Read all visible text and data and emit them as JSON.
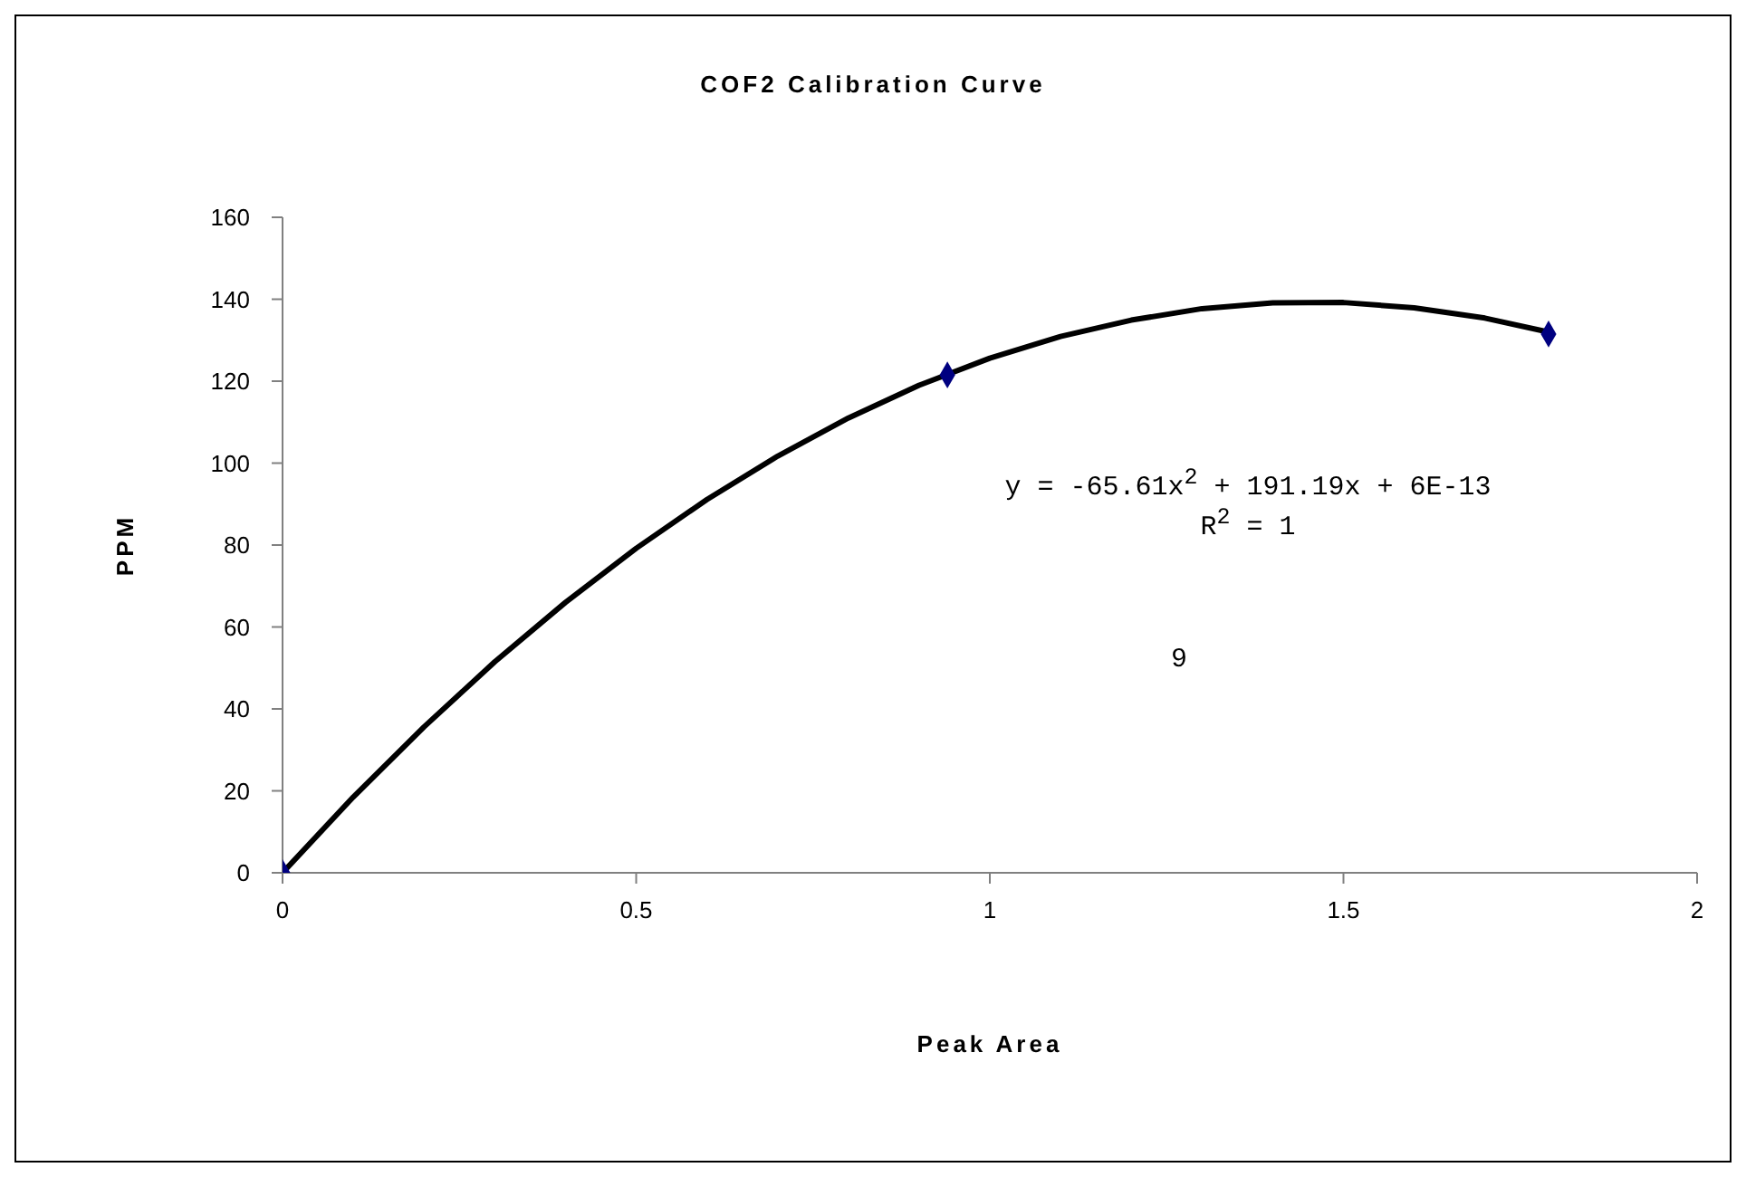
{
  "chart_data": {
    "type": "scatter",
    "title": "COF2 Calibration Curve",
    "xlabel": "Peak Area",
    "ylabel": "PPM",
    "annotations": [
      "y = -65.61x$^{2}$ + 191.19x + 6E-13",
      "R$^{2}$ = 1",
      "9"
    ],
    "xlim": [
      0,
      2
    ],
    "xticks": [
      0,
      0.5,
      1,
      1.5,
      2
    ],
    "ylim": [
      0,
      160
    ],
    "yticks": [
      0,
      20,
      40,
      60,
      80,
      100,
      120,
      140,
      160
    ],
    "grid": false,
    "marker": "diamond",
    "series": [
      {
        "color": "#000080",
        "x": [
          0,
          0.94,
          1.79
        ],
        "values": [
          0,
          121.5,
          131.5
        ]
      },
      {
        "type": "line",
        "color": "#000000",
        "marker": "none",
        "line_style": "solid",
        "x": [
          0,
          0.1,
          0.2,
          0.3,
          0.4,
          0.5,
          0.6,
          0.7,
          0.8,
          0.9,
          1.0,
          1.1,
          1.2,
          1.3,
          1.4,
          1.5,
          1.6,
          1.7,
          1.79
        ],
        "values": [
          0,
          18.5,
          35.6,
          51.5,
          66.0,
          79.2,
          91.1,
          101.7,
          111.0,
          119.0,
          125.6,
          130.9,
          134.9,
          137.7,
          139.1,
          139.2,
          137.9,
          135.4,
          132.0
        ]
      }
    ]
  }
}
